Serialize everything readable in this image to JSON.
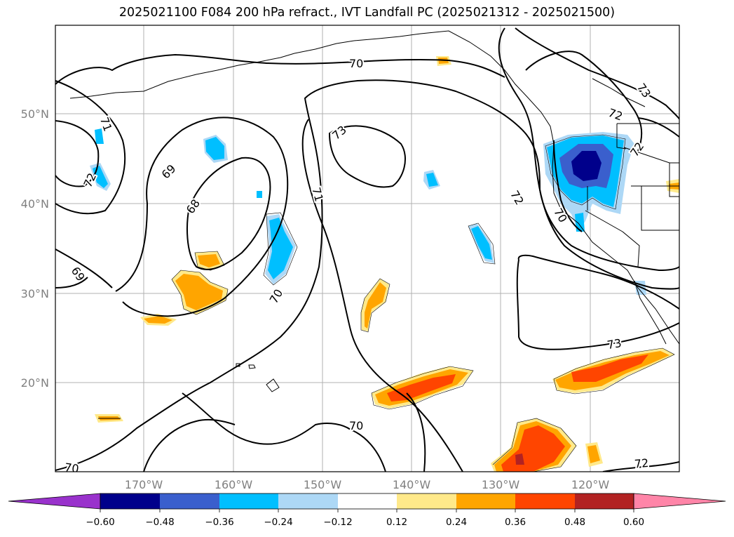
{
  "title": "2025021100 F084 200 hPa refract., IVT Landfall PC (2025021312 - 2025021500)",
  "map": {
    "lat_labels": [
      "50°N",
      "40°N",
      "30°N",
      "20°N"
    ],
    "lon_labels": [
      "170°W",
      "160°W",
      "150°W",
      "140°W",
      "130°W",
      "120°W"
    ],
    "contour_labels": [
      "70",
      "71",
      "72",
      "69",
      "68",
      "69",
      "72",
      "70",
      "73",
      "71",
      "72",
      "70",
      "73",
      "73",
      "72",
      "70",
      "70",
      "72"
    ]
  },
  "colorbar": {
    "ticks": [
      "−0.60",
      "−0.48",
      "−0.36",
      "−0.24",
      "−0.12",
      "0.12",
      "0.24",
      "0.36",
      "0.48",
      "0.60"
    ],
    "colors": [
      "#9932cc",
      "#00008b",
      "#3a5fcd",
      "#00bfff",
      "#add8f6",
      "#ffffff",
      "#ffe98a",
      "#ffa500",
      "#ff4500",
      "#b22222",
      "#ff85a8"
    ]
  }
}
